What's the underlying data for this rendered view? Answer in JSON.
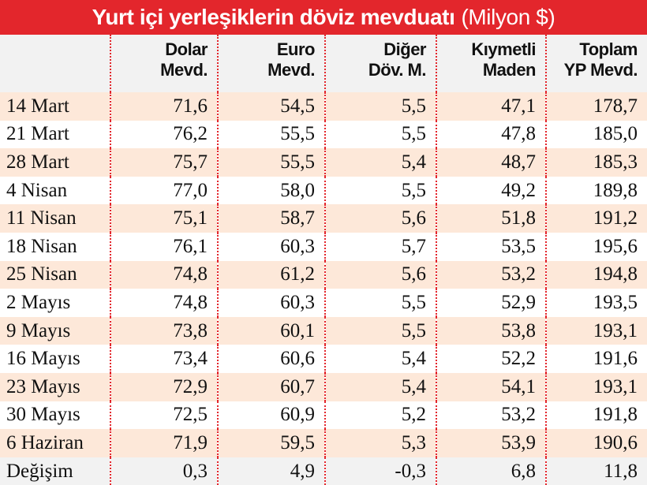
{
  "title": {
    "main": "Yurt içi yerleşiklerin döviz mevduatı",
    "unit": "(Milyon $)"
  },
  "colors": {
    "title_bg": "#e3262c",
    "row_tint": "#fde8d9",
    "header_bg": "#f2f2f2",
    "divider": "#e3262c"
  },
  "chart_data": {
    "type": "table",
    "title": "Yurt içi yerleşiklerin döviz mevduatı (Milyon $)",
    "columns": [
      {
        "line1": "Dolar",
        "line2": "Mevd."
      },
      {
        "line1": "Euro",
        "line2": "Mevd."
      },
      {
        "line1": "Diğer",
        "line2": "Döv. M."
      },
      {
        "line1": "Kıymetli",
        "line2": "Maden"
      },
      {
        "line1": "Toplam",
        "line2": "YP Mevd."
      }
    ],
    "rows": [
      {
        "label": "14 Mart",
        "values": [
          "71,6",
          "54,5",
          "5,5",
          "47,1",
          "178,7"
        ]
      },
      {
        "label": "21 Mart",
        "values": [
          "76,2",
          "55,5",
          "5,5",
          "47,8",
          "185,0"
        ]
      },
      {
        "label": "28 Mart",
        "values": [
          "75,7",
          "55,5",
          "5,4",
          "48,7",
          "185,3"
        ]
      },
      {
        "label": "4 Nisan",
        "values": [
          "77,0",
          "58,0",
          "5,5",
          "49,2",
          "189,8"
        ]
      },
      {
        "label": "11 Nisan",
        "values": [
          "75,1",
          "58,7",
          "5,6",
          "51,8",
          "191,2"
        ]
      },
      {
        "label": "18 Nisan",
        "values": [
          "76,1",
          "60,3",
          "5,7",
          "53,5",
          "195,6"
        ]
      },
      {
        "label": "25 Nisan",
        "values": [
          "74,8",
          "61,2",
          "5,6",
          "53,2",
          "194,8"
        ]
      },
      {
        "label": "2 Mayıs",
        "values": [
          "74,8",
          "60,3",
          "5,5",
          "52,9",
          "193,5"
        ]
      },
      {
        "label": "9 Mayıs",
        "values": [
          "73,8",
          "60,1",
          "5,5",
          "53,8",
          "193,1"
        ]
      },
      {
        "label": "16 Mayıs",
        "values": [
          "73,4",
          "60,6",
          "5,4",
          "52,2",
          "191,6"
        ]
      },
      {
        "label": "23 Mayıs",
        "values": [
          "72,9",
          "60,7",
          "5,4",
          "54,1",
          "193,1"
        ]
      },
      {
        "label": "30 Mayıs",
        "values": [
          "72,5",
          "60,9",
          "5,2",
          "53,2",
          "191,8"
        ]
      },
      {
        "label": "6 Haziran",
        "values": [
          "71,9",
          "59,5",
          "5,3",
          "53,9",
          "190,6"
        ]
      },
      {
        "label": "Değişim",
        "values": [
          "0,3",
          "4,9",
          "-0,3",
          "6,8",
          "11,8"
        ]
      }
    ]
  }
}
